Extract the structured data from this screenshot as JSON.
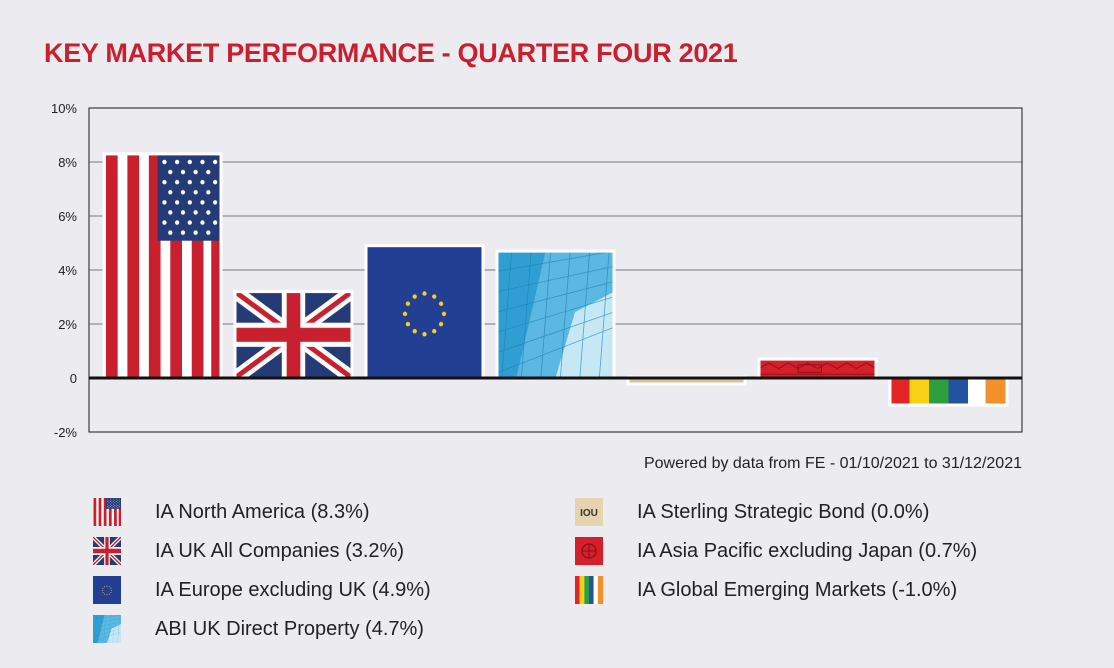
{
  "title": "KEY MARKET PERFORMANCE - QUARTER FOUR 2021",
  "source": "Powered by data from FE - 01/10/2021 to 31/12/2021",
  "colors": {
    "title": "#c8202e",
    "background": "#ebebf0",
    "axis": "#1a1a1a",
    "grid": "#555555"
  },
  "chart_data": {
    "type": "bar",
    "title": "KEY MARKET PERFORMANCE - QUARTER FOUR 2021",
    "xlabel": "",
    "ylabel": "",
    "ylim": [
      -2,
      10
    ],
    "yticks": [
      -2,
      0,
      2,
      4,
      6,
      8,
      10
    ],
    "ytick_labels": [
      "-2%",
      "0",
      "2%",
      "4%",
      "6%",
      "8%",
      "10%"
    ],
    "grid": true,
    "categories": [
      "IA North America",
      "IA UK All Companies",
      "IA Europe excluding UK",
      "ABI UK Direct Property",
      "IA Sterling Strategic Bond",
      "IA Asia Pacific excluding Japan",
      "IA Global Emerging Markets"
    ],
    "values": [
      8.3,
      3.2,
      4.9,
      4.7,
      0.0,
      0.7,
      -1.0
    ],
    "fills": [
      "us-flag",
      "uk-flag",
      "eu-flag",
      "glass-building",
      "iou-note",
      "red-pattern",
      "rainbow-stripes"
    ]
  },
  "legend": [
    {
      "label": "IA North America (8.3%)",
      "icon": "us-flag-icon"
    },
    {
      "label": "IA UK All Companies (3.2%)",
      "icon": "uk-flag-icon"
    },
    {
      "label": "IA Europe excluding UK (4.9%)",
      "icon": "eu-flag-icon"
    },
    {
      "label": "ABI UK Direct Property (4.7%)",
      "icon": "building-icon"
    },
    {
      "label": "IA Sterling Strategic Bond (0.0%)",
      "icon": "iou-icon",
      "icon_text": "IOU"
    },
    {
      "label": "IA Asia Pacific excluding Japan (0.7%)",
      "icon": "asia-pattern-icon"
    },
    {
      "label": "IA Global Emerging Markets (-1.0%)",
      "icon": "rainbow-icon"
    }
  ]
}
